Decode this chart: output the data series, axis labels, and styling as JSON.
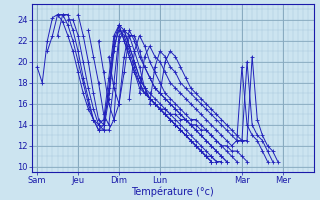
{
  "xlabel": "Température (°c)",
  "bg_color": "#cce4f0",
  "grid_minor_color": "#aac8dc",
  "grid_major_color": "#88aabf",
  "line_color": "#2020bb",
  "ylim": [
    9.5,
    25.5
  ],
  "yticks": [
    10,
    12,
    14,
    16,
    18,
    20,
    22,
    24
  ],
  "day_labels": [
    "Sam",
    "Jeu",
    "Dim",
    "Lun",
    "Mar",
    "Mer"
  ],
  "day_positions": [
    0,
    24,
    48,
    72,
    120,
    144
  ],
  "xlim": [
    -3,
    162
  ],
  "forecasts": [
    {
      "start": 0,
      "step": 3,
      "vals": [
        19.5,
        18.0,
        22.0,
        24.2,
        24.5,
        23.8,
        22.5,
        21.0,
        19.0,
        17.0,
        15.5,
        14.5,
        14.0,
        13.5,
        13.5,
        14.5,
        22.0,
        23.0,
        22.5,
        21.0,
        19.5,
        17.5,
        16.5,
        16.0,
        15.5,
        15.5,
        15.0,
        15.0,
        14.5,
        14.5,
        14.0,
        14.0,
        13.5,
        13.5,
        13.0,
        12.5,
        12.0,
        12.0,
        11.5,
        11.5,
        11.0,
        10.5
      ]
    },
    {
      "start": 6,
      "step": 3,
      "vals": [
        21.0,
        22.5,
        24.5,
        24.5,
        23.5,
        22.0,
        20.0,
        18.0,
        16.0,
        14.5,
        13.5,
        13.5,
        16.5,
        21.0,
        23.5,
        23.0,
        21.5,
        20.0,
        18.5,
        17.5,
        16.5,
        16.0,
        15.5,
        15.0,
        14.5,
        14.0,
        13.5,
        13.0,
        12.5,
        12.0,
        11.5,
        11.0,
        11.0,
        10.5,
        10.5
      ]
    },
    {
      "start": 12,
      "step": 3,
      "vals": [
        22.5,
        24.5,
        24.5,
        23.0,
        21.0,
        18.5,
        16.5,
        14.5,
        13.5,
        14.0,
        17.0,
        21.5,
        23.0,
        22.5,
        21.0,
        19.5,
        18.0,
        17.0,
        16.5,
        16.0,
        15.5,
        15.0,
        14.5,
        14.0,
        13.5,
        13.0,
        12.5,
        12.0,
        11.5,
        11.0,
        10.5
      ]
    },
    {
      "start": 18,
      "step": 3,
      "vals": [
        24.0,
        24.0,
        22.5,
        20.0,
        17.5,
        15.5,
        14.0,
        14.5,
        18.5,
        22.5,
        23.5,
        22.0,
        20.5,
        19.0,
        17.5,
        17.0,
        16.5,
        16.0,
        15.5,
        15.0,
        14.5,
        14.0,
        13.5,
        13.0,
        12.5,
        12.0,
        11.5,
        11.0,
        10.5
      ]
    },
    {
      "start": 24,
      "step": 3,
      "vals": [
        24.5,
        22.5,
        20.0,
        17.0,
        14.5,
        14.0,
        17.5,
        22.0,
        23.5,
        22.0,
        20.5,
        19.0,
        18.0,
        17.0,
        16.5,
        16.0,
        15.5,
        15.0,
        14.5,
        14.0,
        13.5,
        13.0,
        12.5,
        12.0,
        11.5,
        11.0,
        10.5
      ]
    },
    {
      "start": 30,
      "step": 3,
      "vals": [
        23.0,
        20.5,
        18.0,
        15.0,
        14.0,
        18.0,
        22.5,
        23.0,
        21.5,
        20.0,
        18.5,
        17.5,
        17.0,
        16.5,
        16.0,
        15.5,
        15.0,
        14.5,
        14.0,
        13.5,
        13.0,
        12.5,
        12.0,
        11.5,
        11.0,
        10.5
      ]
    },
    {
      "start": 36,
      "step": 3,
      "vals": [
        22.0,
        19.0,
        16.0,
        14.5,
        16.0,
        20.5,
        23.0,
        22.0,
        20.5,
        19.5,
        18.5,
        17.5,
        17.0,
        16.5,
        16.0,
        15.5,
        15.0,
        14.5,
        14.0,
        13.5,
        13.0,
        12.5,
        12.0,
        11.5,
        11.0,
        10.5
      ]
    },
    {
      "start": 42,
      "step": 3,
      "vals": [
        20.5,
        17.5,
        16.0,
        19.0,
        22.5,
        22.5,
        21.0,
        19.5,
        18.5,
        17.5,
        17.0,
        16.5,
        16.0,
        15.5,
        15.0,
        14.5,
        14.0,
        13.5,
        13.0,
        12.5,
        12.0,
        11.5,
        11.0,
        10.5
      ]
    },
    {
      "start": 54,
      "step": 3,
      "vals": [
        16.5,
        21.0,
        22.5,
        21.5,
        20.0,
        19.0,
        18.0,
        17.0,
        16.5,
        16.0,
        15.5,
        15.0,
        14.5,
        14.5,
        14.0,
        13.5,
        13.0,
        12.5,
        12.0,
        11.5,
        11.0,
        10.5
      ]
    },
    {
      "start": 60,
      "step": 3,
      "vals": [
        17.0,
        20.5,
        21.5,
        20.5,
        20.0,
        19.0,
        18.0,
        17.5,
        17.0,
        16.5,
        16.0,
        15.5,
        15.0,
        14.5,
        14.0,
        13.5,
        13.0,
        12.5,
        12.0,
        12.5,
        19.5,
        14.0,
        13.0,
        12.5,
        11.5,
        10.5
      ]
    },
    {
      "start": 66,
      "step": 3,
      "vals": [
        16.0,
        19.5,
        21.0,
        20.5,
        19.5,
        19.0,
        18.0,
        17.5,
        17.0,
        16.5,
        16.0,
        15.5,
        15.0,
        14.5,
        14.0,
        13.5,
        13.0,
        12.5,
        12.5,
        20.0,
        14.0,
        13.0,
        12.5,
        11.5,
        10.5
      ]
    },
    {
      "start": 72,
      "step": 3,
      "vals": [
        17.0,
        20.0,
        21.0,
        20.5,
        19.5,
        18.5,
        17.5,
        17.0,
        16.5,
        16.0,
        15.5,
        15.0,
        14.5,
        14.0,
        13.5,
        13.0,
        12.5,
        12.5,
        20.5,
        14.5,
        13.0,
        12.0,
        11.5,
        10.5
      ]
    }
  ]
}
